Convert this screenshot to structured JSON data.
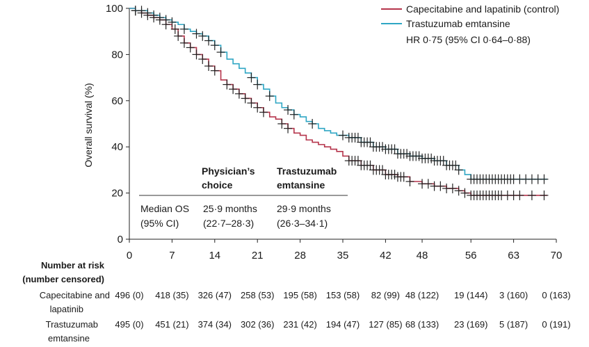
{
  "chart_data": {
    "type": "line",
    "title": "",
    "xlabel": "",
    "ylabel": "Overall survival (%)",
    "xlim": [
      0,
      70
    ],
    "ylim": [
      0,
      100
    ],
    "xticks": [
      0,
      7,
      14,
      21,
      28,
      35,
      42,
      48,
      56,
      63,
      70
    ],
    "yticks": [
      0,
      20,
      40,
      60,
      80,
      100
    ],
    "grid": false,
    "legend_position": "top-right",
    "hr_text": "HR 0·75 (95% CI 0·64–0·88)",
    "series": [
      {
        "name": "Capecitabine and lapatinib (control)",
        "color": "#b5344b",
        "x": [
          0,
          1,
          2,
          3,
          4,
          5,
          6,
          7,
          8,
          9,
          10,
          11,
          12,
          13,
          14,
          15,
          16,
          17,
          18,
          19,
          20,
          21,
          22,
          23,
          24,
          25,
          26,
          27,
          28,
          29,
          30,
          31,
          32,
          33,
          34,
          35,
          36,
          38,
          40,
          42,
          44,
          46,
          48,
          50,
          52,
          54,
          55,
          56,
          58,
          60,
          62,
          64,
          66,
          68.5
        ],
        "y": [
          100,
          99,
          98,
          97,
          96,
          95,
          93,
          91,
          88,
          85,
          83,
          80,
          78,
          75,
          73,
          69,
          67,
          65,
          63,
          61,
          59,
          57,
          55,
          53,
          52,
          50,
          48,
          46,
          45,
          43,
          42,
          41,
          40,
          39,
          38,
          36,
          34,
          32,
          30,
          28,
          27,
          25,
          24,
          23,
          22,
          21,
          20,
          19,
          19,
          19,
          19,
          19,
          19,
          19
        ],
        "censor_x": [
          1,
          2,
          3,
          4,
          5,
          6,
          7.5,
          8,
          9,
          10,
          11,
          12,
          13,
          14,
          16,
          17,
          18,
          19,
          20,
          21,
          22,
          25,
          26,
          36,
          36.5,
          37,
          37.5,
          38,
          38.5,
          39,
          39.5,
          40,
          40.5,
          41,
          41.5,
          42,
          42.5,
          43,
          43.5,
          44,
          44.5,
          45,
          46,
          48,
          49,
          50,
          51,
          52,
          53,
          54,
          55,
          56,
          56.5,
          57,
          57.5,
          58,
          58.5,
          59,
          59.5,
          60,
          60.5,
          61,
          62,
          63,
          64,
          66,
          68
        ]
      },
      {
        "name": "Trastuzumab emtansine",
        "color": "#2ea6c4",
        "x": [
          0,
          1,
          2,
          3,
          4,
          5,
          6,
          7,
          8,
          9,
          10,
          11,
          12,
          13,
          14,
          15,
          16,
          17,
          18,
          19,
          20,
          21,
          22,
          23,
          24,
          25,
          26,
          27,
          28,
          29,
          30,
          31,
          32,
          33,
          34,
          35,
          36,
          38,
          40,
          42,
          44,
          46,
          48,
          50,
          52,
          54,
          55,
          56,
          57,
          60,
          63,
          66,
          68.5
        ],
        "y": [
          100,
          99,
          99,
          98,
          97,
          96,
          95,
          94,
          93,
          91,
          90,
          89,
          88,
          86,
          84,
          81,
          78,
          76,
          74,
          72,
          70,
          67,
          65,
          62,
          59,
          57,
          56,
          54,
          53,
          51,
          50,
          48,
          47,
          46,
          45,
          45,
          44,
          42,
          40,
          39,
          37,
          36,
          35,
          34,
          32,
          30,
          28,
          26,
          26,
          26,
          26,
          26,
          26
        ],
        "censor_x": [
          1,
          2,
          3,
          4,
          5,
          6,
          7,
          9,
          11,
          12,
          13,
          14,
          15,
          20,
          21,
          23,
          26,
          27,
          30,
          35,
          36,
          36.5,
          37,
          37.5,
          38,
          38.5,
          39,
          39.5,
          40,
          40.5,
          41,
          41.5,
          42,
          42.5,
          43,
          43.5,
          44,
          44.5,
          45,
          45.5,
          46,
          46.5,
          47,
          47.5,
          48,
          48.5,
          49,
          49.5,
          50,
          50.5,
          51,
          51.5,
          52,
          52.5,
          53,
          53.5,
          54,
          56,
          56.5,
          57,
          57.5,
          58,
          58.5,
          59,
          59.5,
          60,
          60.5,
          61,
          61.5,
          62,
          62.5,
          63,
          64,
          65,
          66,
          67,
          68
        ]
      }
    ],
    "annotation": {
      "col1_header_line1": "Physician’s",
      "col1_header_line2": "choice",
      "col2_header_line1": "Trastuzumab",
      "col2_header_line2": "emtansine",
      "row_label_line1": "Median OS",
      "row_label_line2": "(95% CI)",
      "col1_value_line1": "25·9 months",
      "col1_value_line2": "(22·7–28·3)",
      "col2_value_line1": "29·9 months",
      "col2_value_line2": "(26·3–34·1)"
    },
    "risk_table": {
      "title_line1": "Number at risk",
      "title_line2": "(number censored)",
      "rows": [
        {
          "label_line1": "Capecitabine and",
          "label_line2": "lapatinib",
          "values": [
            "496 (0)",
            "418 (35)",
            "326 (47)",
            "258 (53)",
            "195 (58)",
            "153 (58)",
            "82 (99)",
            "48 (122)",
            "19 (144)",
            "3 (160)",
            "0 (163)"
          ]
        },
        {
          "label_line1": "Trastuzumab",
          "label_line2": "emtansine",
          "values": [
            "495 (0)",
            "451 (21)",
            "374 (34)",
            "302 (36)",
            "231 (42)",
            "194 (47)",
            "127 (85)",
            "68 (133)",
            "23 (169)",
            "5 (187)",
            "0 (191)"
          ]
        }
      ]
    }
  }
}
